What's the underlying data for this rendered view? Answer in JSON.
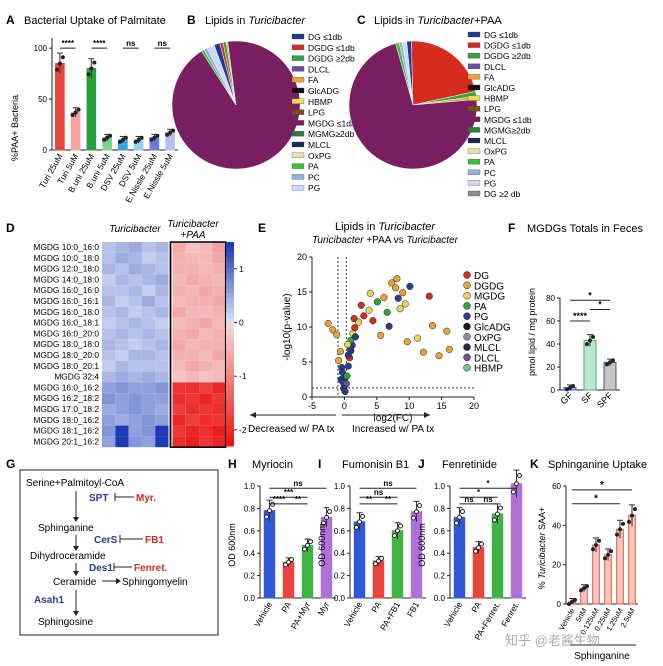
{
  "panelA": {
    "letter": "A",
    "title": "Bacterial Uptake of Palmitate",
    "ylabel": "%PAA+ Bacteria",
    "yticks": [
      "0",
      "50",
      "100"
    ],
    "stars": [
      "****",
      "****",
      "ns",
      "ns"
    ],
    "chart_data": {
      "type": "bar",
      "categories": [
        "Turi 25uM",
        "Turi 5uM",
        "B.uni 25uM",
        "B.uni 5uM",
        "DSV 25uM",
        "DSV 5uM",
        "E.Nissle 25uM",
        "E.Nissle 5uM"
      ],
      "values": [
        85,
        37,
        80,
        12,
        10,
        10,
        12,
        17
      ],
      "ylim": [
        0,
        110
      ],
      "colors": [
        "#e8453c",
        "#f6a3a0",
        "#27a33a",
        "#7fd28a",
        "#35a9d6",
        "#8fd3ee",
        "#6c7cd6",
        "#b6bff0"
      ]
    }
  },
  "panelB": {
    "letter": "B",
    "title_prefix": "Lipids in ",
    "title_italic": "Turicibacter",
    "legend": [
      "DG ≤1db",
      "DGDG ≤1db",
      "DGDG ≥2db",
      "DLCL",
      "FA",
      "GlcADG",
      "HBMP",
      "LPG",
      "MGDG ≤1db",
      "MGMG≥2db",
      "MLCL",
      "OxPG",
      "PA",
      "PC",
      "PG"
    ],
    "legend_colors": [
      "#1f3a93",
      "#d62c1f",
      "#2fa53b",
      "#6b4f9a",
      "#f0a23a",
      "#0d0d0d",
      "#e8dd4b",
      "#7a4d20",
      "#7a1e62",
      "#2e7d32",
      "#1c2a52",
      "#e9e2a8",
      "#3fbf3f",
      "#8fb3e0",
      "#cfd8f5"
    ],
    "chart_data": {
      "type": "pie",
      "labels": [
        "DG ≤1db",
        "DGDG ≤1db",
        "DGDG ≥2db",
        "FA",
        "MGDG ≤1db",
        "PA",
        "PC",
        "PG"
      ],
      "values": [
        1.5,
        0.8,
        0.8,
        0.4,
        93,
        0.7,
        0.9,
        1.9
      ]
    }
  },
  "panelC": {
    "letter": "C",
    "title_prefix": "Lipids in ",
    "title_italic": "Turicibacter",
    "title_suffix": "+PAA",
    "legend": [
      "DG ≤1db",
      "DGDG ≤1db",
      "DGDG ≥2db",
      "DLCL",
      "FA",
      "GlcADG",
      "HBMP",
      "LPG",
      "MGDG ≤1db",
      "MGMG≥2db",
      "MLCL",
      "OxPG",
      "PA",
      "PC",
      "PG",
      "DG ≥2 db"
    ],
    "legend_colors": [
      "#1f3a93",
      "#d62c1f",
      "#2fa53b",
      "#6b4f9a",
      "#f0a23a",
      "#0d0d0d",
      "#e8dd4b",
      "#7a4d20",
      "#7a1e62",
      "#2e7d32",
      "#1c2a52",
      "#e9e2a8",
      "#3fbf3f",
      "#8fb3e0",
      "#cfd8f5",
      "#8c8c8c"
    ],
    "chart_data": {
      "type": "pie",
      "labels": [
        "DG ≤1db",
        "DGDG ≤1db",
        "DGDG ≥2db",
        "FA",
        "MGDG ≤1db",
        "PA",
        "PC",
        "PG"
      ],
      "values": [
        1.2,
        22,
        1.2,
        0.8,
        72,
        0.9,
        0.8,
        1.1
      ]
    }
  },
  "panelD": {
    "letter": "D",
    "col_label_1": "Turicibacter",
    "col_label_2": "Turicibacter\n+PAA",
    "row_labels": [
      "MGDG 10:0_16:0",
      "MGDG 10:0_18:0",
      "MGDG 12:0_18:0",
      "MGDG 14:0_18:0",
      "MGDG 16:0_16:0",
      "MGDG 16:0_16:1",
      "MGDG 16:0_18:0",
      "MGDG 16:0_18:1",
      "MGDG 16:0_20:0",
      "MGDG 18:0_18:0",
      "MGDG 18:0_20:0",
      "MGDG 18:0_20:1",
      "MGDG 32:4",
      "MGDG 16:0_16:2",
      "MGDG 16:2_18:2",
      "MGDG 17:0_18:2",
      "MGDG 18:0_16:2",
      "MGDG 18:1_16:2",
      "MGDG 20:1_16:2"
    ],
    "scale_ticks": [
      "1",
      "0",
      "-1",
      "-2"
    ],
    "chart_data": {
      "type": "heatmap",
      "rows": 19,
      "cols": 9,
      "values": [
        [
          0.3,
          0.4,
          0.5,
          0.3,
          0.4,
          -0.6,
          -0.3,
          -0.4,
          -0.7
        ],
        [
          0.3,
          0.5,
          0.4,
          0.2,
          0.3,
          -0.5,
          -0.4,
          -0.4,
          -0.6
        ],
        [
          0.4,
          0.3,
          0.5,
          0.4,
          0.3,
          -0.5,
          -0.5,
          -0.4,
          -0.5
        ],
        [
          0.2,
          0.4,
          0.3,
          0.4,
          0.5,
          -0.4,
          -0.6,
          -0.5,
          -0.4
        ],
        [
          0.3,
          0.3,
          0.4,
          0.2,
          0.4,
          -0.5,
          -0.4,
          -0.6,
          -0.5
        ],
        [
          0.4,
          0.2,
          0.3,
          0.5,
          0.3,
          -0.4,
          -0.5,
          -0.5,
          -0.6
        ],
        [
          0.3,
          0.4,
          0.2,
          0.3,
          0.4,
          -0.6,
          -0.4,
          -0.4,
          -0.5
        ],
        [
          0.2,
          0.3,
          0.4,
          0.3,
          0.2,
          -0.4,
          -0.5,
          -0.6,
          -0.4
        ],
        [
          0.3,
          0.4,
          0.3,
          0.4,
          0.3,
          -0.5,
          -0.6,
          -0.4,
          -0.5
        ],
        [
          0.4,
          0.3,
          0.2,
          0.3,
          0.4,
          -0.6,
          -0.4,
          -0.5,
          -0.5
        ],
        [
          0.3,
          0.2,
          0.4,
          0.4,
          0.3,
          -0.5,
          -0.5,
          -0.4,
          -0.6
        ],
        [
          0.2,
          0.4,
          0.3,
          0.3,
          0.3,
          -0.4,
          -0.6,
          -0.5,
          -0.4
        ],
        [
          0.4,
          0.5,
          0.4,
          0.5,
          0.4,
          -0.3,
          -0.4,
          -0.3,
          -0.4
        ],
        [
          0.6,
          0.7,
          0.6,
          0.6,
          0.7,
          -1.9,
          -2.0,
          -1.8,
          -2.1
        ],
        [
          0.7,
          0.6,
          0.7,
          0.6,
          0.6,
          -2.0,
          -1.9,
          -2.1,
          -1.9
        ],
        [
          0.5,
          0.6,
          0.7,
          0.6,
          0.5,
          -1.8,
          -2.0,
          -1.9,
          -2.0
        ],
        [
          0.6,
          0.5,
          0.6,
          0.7,
          0.6,
          -2.1,
          -1.8,
          -2.0,
          -1.9
        ],
        [
          0.7,
          1.5,
          0.6,
          0.7,
          1.5,
          -1.9,
          -2.1,
          -2.0,
          -2.2
        ],
        [
          0.6,
          1.5,
          0.7,
          0.6,
          1.5,
          -2.0,
          -2.2,
          -1.9,
          -2.1
        ]
      ]
    }
  },
  "panelE": {
    "letter": "E",
    "title_prefix": "Lipids in ",
    "title_italic": "Turicibacter",
    "subtitle_italic1": "Turicibacter",
    "subtitle_mid": " +PAA vs ",
    "subtitle_italic2": "Turicibacter",
    "xlabel": "log2(FC)",
    "ylabel": "-log10(p-value)",
    "xticks": [
      "-5",
      "0",
      "5",
      "10",
      "15",
      "20"
    ],
    "yticks": [
      "0",
      "5",
      "10",
      "15",
      "20"
    ],
    "decreased": "Decreased w/ PA tx",
    "increased": "Increased w/ PA tx",
    "legend": [
      "DG",
      "DGDG",
      "MGDG",
      "PA",
      "PG",
      "GlcADG",
      "OxPG",
      "MLCL",
      "DLCL",
      "HBMP"
    ],
    "legend_colors": [
      "#d62c1f",
      "#e9a23b",
      "#e2d65a",
      "#2fa53b",
      "#2a3c8f",
      "#1a1a1a",
      "#8a8aa8",
      "#1c2a52",
      "#6b4f9a",
      "#7bc47f"
    ],
    "chart_data": {
      "type": "scatter",
      "xlim": [
        -5,
        20
      ],
      "ylim": [
        0,
        20
      ],
      "points": [
        {
          "x": -2.5,
          "y": 10.5,
          "c": 1
        },
        {
          "x": -1.8,
          "y": 9.6,
          "c": 1
        },
        {
          "x": -1.2,
          "y": 8.9,
          "c": 1
        },
        {
          "x": -0.6,
          "y": 6.5,
          "c": 1
        },
        {
          "x": -0.9,
          "y": 5.2,
          "c": 1
        },
        {
          "x": -0.4,
          "y": 4.2,
          "c": 4
        },
        {
          "x": -0.3,
          "y": 3.5,
          "c": 4
        },
        {
          "x": -0.5,
          "y": 2.5,
          "c": 4
        },
        {
          "x": -0.2,
          "y": 2.1,
          "c": 4
        },
        {
          "x": 0.0,
          "y": 1.6,
          "c": 4
        },
        {
          "x": 0.2,
          "y": 2.8,
          "c": 4
        },
        {
          "x": 0.3,
          "y": 1.9,
          "c": 8
        },
        {
          "x": -0.1,
          "y": 1.2,
          "c": 4
        },
        {
          "x": 0.1,
          "y": 0.8,
          "c": 4
        },
        {
          "x": 0.4,
          "y": 3.0,
          "c": 3
        },
        {
          "x": 0.6,
          "y": 4.4,
          "c": 4
        },
        {
          "x": 0.8,
          "y": 5.6,
          "c": 0
        },
        {
          "x": 1.0,
          "y": 6.6,
          "c": 4
        },
        {
          "x": 1.2,
          "y": 7.4,
          "c": 4
        },
        {
          "x": 1.0,
          "y": 8.1,
          "c": 3
        },
        {
          "x": 1.3,
          "y": 9.1,
          "c": 2
        },
        {
          "x": 1.6,
          "y": 9.9,
          "c": 0
        },
        {
          "x": 1.7,
          "y": 8.6,
          "c": 4
        },
        {
          "x": 2.2,
          "y": 10.7,
          "c": 2
        },
        {
          "x": 0.6,
          "y": 6.0,
          "c": 4
        },
        {
          "x": 0.9,
          "y": 7.0,
          "c": 4
        },
        {
          "x": 1.5,
          "y": 11.2,
          "c": 0
        },
        {
          "x": 3.0,
          "y": 11.6,
          "c": 0
        },
        {
          "x": 3.8,
          "y": 12.4,
          "c": 2
        },
        {
          "x": 4.4,
          "y": 10.9,
          "c": 0
        },
        {
          "x": 5.1,
          "y": 13.6,
          "c": 3
        },
        {
          "x": 6.1,
          "y": 14.2,
          "c": 1
        },
        {
          "x": 6.6,
          "y": 12.1,
          "c": 3
        },
        {
          "x": 7.3,
          "y": 16.3,
          "c": 1
        },
        {
          "x": 7.9,
          "y": 15.6,
          "c": 1
        },
        {
          "x": 8.3,
          "y": 14.1,
          "c": 4
        },
        {
          "x": 8.6,
          "y": 12.6,
          "c": 2
        },
        {
          "x": 8.1,
          "y": 16.9,
          "c": 1
        },
        {
          "x": 9.0,
          "y": 14.9,
          "c": 1
        },
        {
          "x": 9.4,
          "y": 13.3,
          "c": 2
        },
        {
          "x": 10.1,
          "y": 15.8,
          "c": 4
        },
        {
          "x": 9.7,
          "y": 7.9,
          "c": 1
        },
        {
          "x": 11.3,
          "y": 8.4,
          "c": 2
        },
        {
          "x": 12.2,
          "y": 6.4,
          "c": 1
        },
        {
          "x": 13.1,
          "y": 14.4,
          "c": 0
        },
        {
          "x": 13.6,
          "y": 10.2,
          "c": 1
        },
        {
          "x": 14.6,
          "y": 5.9,
          "c": 1
        },
        {
          "x": 15.8,
          "y": 9.4,
          "c": 1
        },
        {
          "x": 16.2,
          "y": 6.8,
          "c": 1
        },
        {
          "x": 5.6,
          "y": 8.8,
          "c": 1
        },
        {
          "x": 6.9,
          "y": 10.1,
          "c": 4
        },
        {
          "x": 2.6,
          "y": 13.1,
          "c": 0
        },
        {
          "x": 4.0,
          "y": 14.8,
          "c": 2
        },
        {
          "x": 0.5,
          "y": 7.5,
          "c": 2
        }
      ]
    }
  },
  "panelF": {
    "letter": "F",
    "title": "MGDGs Totals in Feces",
    "ylabel": "pmol lipid / mg protein",
    "yticks": [
      "0",
      "20",
      "40",
      "60",
      "80"
    ],
    "stars": [
      "*",
      "****",
      "*"
    ],
    "chart_data": {
      "type": "bar",
      "categories": [
        "GF",
        "SF",
        "SPF"
      ],
      "values": [
        2,
        43,
        24
      ],
      "ylim": [
        0,
        80
      ],
      "colors": [
        "#2f57d8",
        "#3fb36e",
        "#555555"
      ]
    }
  },
  "panelG": {
    "letter": "G",
    "steps": [
      "Serine+Palmitoyl-CoA",
      "Sphinganine",
      "Dihydroceramide",
      "Ceramide",
      "Sphingomyelin",
      "Sphingosine"
    ],
    "enzymes": [
      "SPT",
      "CerS",
      "Des1",
      "Asah1"
    ],
    "inhibitors": [
      "Myr.",
      "FB1",
      "Fenret."
    ]
  },
  "panelH": {
    "letter": "H",
    "title": "Myriocin",
    "ylabel": "OD 600nm",
    "yticks": [
      "0.0",
      "0.2",
      "0.4",
      "0.6",
      "0.8",
      "1.0"
    ],
    "stars": [
      "ns",
      "***",
      "****",
      "**"
    ],
    "chart_data": {
      "type": "bar",
      "categories": [
        "Vehicle",
        "PA",
        "PA+Myr",
        "Myr"
      ],
      "values": [
        0.78,
        0.32,
        0.47,
        0.72
      ],
      "ylim": [
        0,
        1.0
      ],
      "colors": [
        "#2f57d8",
        "#e8453c",
        "#3fb344",
        "#b070d8"
      ]
    }
  },
  "panelI": {
    "letter": "I",
    "title": "Fumonisin B1",
    "ylabel": "OD 600nm",
    "yticks": [
      "0.0",
      "0.2",
      "0.4",
      "0.6",
      "0.8",
      "1.0"
    ],
    "stars": [
      "ns",
      "ns",
      "**",
      "**"
    ],
    "chart_data": {
      "type": "bar",
      "categories": [
        "Vehicle",
        "PA",
        "PA+FB1",
        "FB1"
      ],
      "values": [
        0.68,
        0.33,
        0.6,
        0.77
      ],
      "ylim": [
        0,
        1.0
      ],
      "colors": [
        "#2f57d8",
        "#e8453c",
        "#3fb344",
        "#b070d8"
      ]
    }
  },
  "panelJ": {
    "letter": "J",
    "title": "Fenretinide",
    "ylabel": "OD 600nm",
    "yticks": [
      "0.0",
      "0.2",
      "0.4",
      "0.6",
      "0.8",
      "1.0"
    ],
    "stars": [
      "*",
      "*",
      "ns",
      "ns"
    ],
    "chart_data": {
      "type": "bar",
      "categories": [
        "Vehicle",
        "PA",
        "PA+Fenret.",
        "Fenret."
      ],
      "values": [
        0.72,
        0.45,
        0.75,
        1.02
      ],
      "ylim": [
        0,
        1.0
      ],
      "colors": [
        "#2f57d8",
        "#e8453c",
        "#3fb344",
        "#b070d8"
      ]
    }
  },
  "panelK": {
    "letter": "K",
    "title": "Sphinganine Uptake",
    "ylabel_italic": "Turicibacter",
    "ylabel_pre": "% ",
    "ylabel_post": " SAA+",
    "yticks": [
      "0",
      "20",
      "40",
      "60"
    ],
    "xlabel": "Sphinganine",
    "stars": [
      "*",
      "*"
    ],
    "chart_data": {
      "type": "bar",
      "categories": [
        "Vehicle",
        "5nM",
        "0.125uM",
        "0.25uM",
        "1.25uM",
        "2.5uM"
      ],
      "values": [
        1,
        8,
        30,
        25,
        38,
        45
      ],
      "ylim": [
        0,
        60
      ],
      "colors": [
        "#e0563f",
        "#e0563f",
        "#e0563f",
        "#e0563f",
        "#e0563f",
        "#e0563f"
      ]
    }
  },
  "watermark": "知乎 @老酱生物"
}
